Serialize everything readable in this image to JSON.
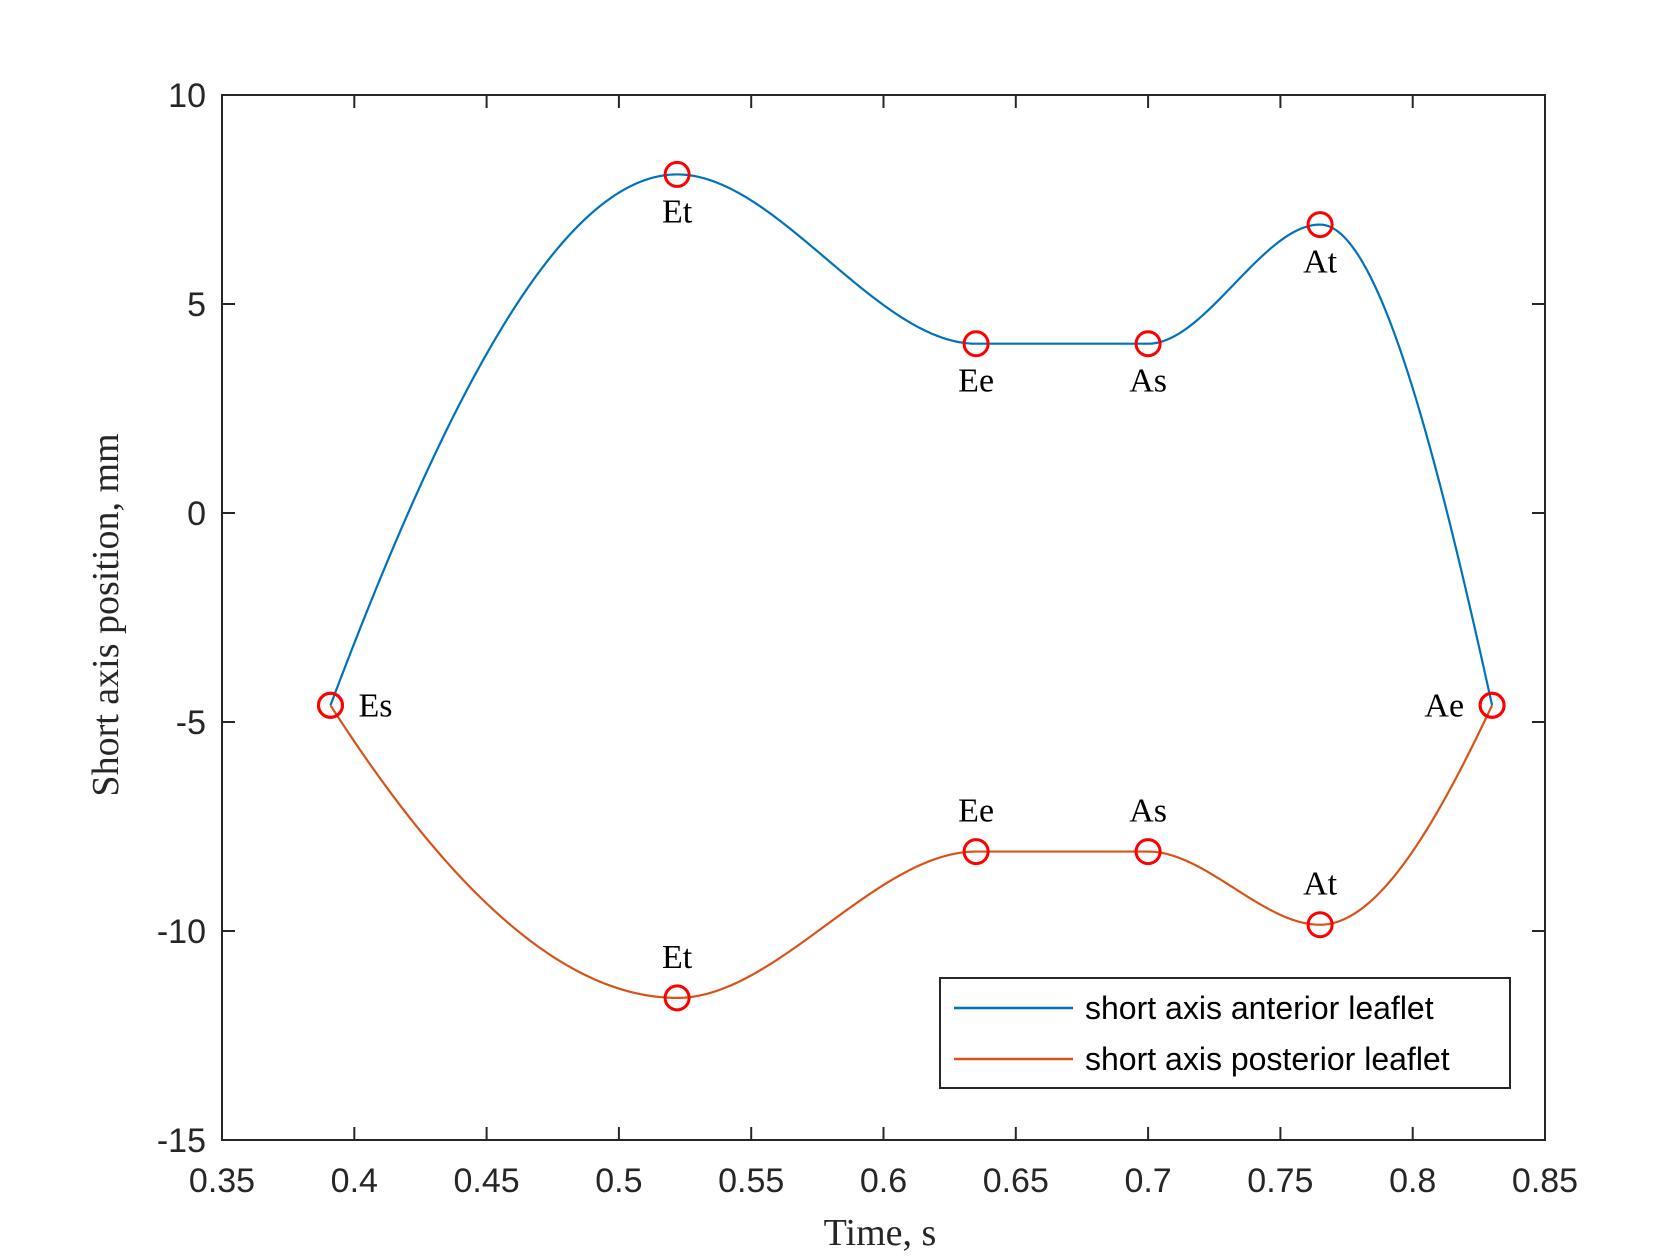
{
  "chart_data": {
    "type": "line",
    "title": "",
    "xlabel": "Time, s",
    "ylabel": "Short axis position, mm",
    "xlim": [
      0.35,
      0.85
    ],
    "ylim": [
      -15,
      10
    ],
    "xticks": [
      0.35,
      0.4,
      0.45,
      0.5,
      0.55,
      0.6,
      0.65,
      0.7,
      0.75,
      0.8,
      0.85
    ],
    "xtick_labels": [
      "0.35",
      "0.4",
      "0.45",
      "0.5",
      "0.55",
      "0.6",
      "0.65",
      "0.7",
      "0.75",
      "0.8",
      "0.85"
    ],
    "yticks": [
      -15,
      -10,
      -5,
      0,
      5,
      10
    ],
    "ytick_labels": [
      "-15",
      "-10",
      "-5",
      "0",
      "5",
      "10"
    ],
    "grid": false,
    "legend_position": "bottom-right",
    "series": [
      {
        "name": "short axis anterior leaflet",
        "color": "#0072BD",
        "points": [
          {
            "x": 0.391,
            "y": -4.6,
            "label": "Es",
            "label_side": "right"
          },
          {
            "x": 0.522,
            "y": 8.1,
            "label": "Et",
            "label_side": "below"
          },
          {
            "x": 0.635,
            "y": 4.05,
            "label": "Ee",
            "label_side": "below"
          },
          {
            "x": 0.7,
            "y": 4.05,
            "label": "As",
            "label_side": "below"
          },
          {
            "x": 0.765,
            "y": 6.9,
            "label": "At",
            "label_side": "below"
          },
          {
            "x": 0.83,
            "y": -4.6,
            "label": "Ae",
            "label_side": "left"
          }
        ]
      },
      {
        "name": "short axis posterior leaflet",
        "color": "#D95319",
        "points": [
          {
            "x": 0.391,
            "y": -4.6,
            "label": "",
            "label_side": "none"
          },
          {
            "x": 0.522,
            "y": -11.6,
            "label": "Et",
            "label_side": "above"
          },
          {
            "x": 0.635,
            "y": -8.1,
            "label": "Ee",
            "label_side": "above"
          },
          {
            "x": 0.7,
            "y": -8.1,
            "label": "As",
            "label_side": "above"
          },
          {
            "x": 0.765,
            "y": -9.85,
            "label": "At",
            "label_side": "above"
          },
          {
            "x": 0.83,
            "y": -4.6,
            "label": "",
            "label_side": "none"
          }
        ]
      }
    ],
    "marker_color": "#FF0000"
  }
}
